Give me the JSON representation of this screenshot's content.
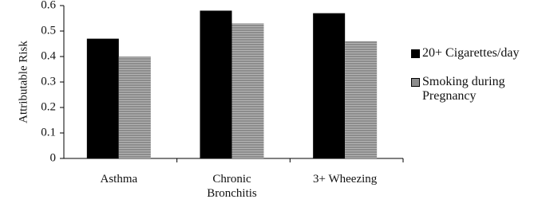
{
  "chart_data": {
    "type": "bar",
    "y_label": "Attributable Risk",
    "categories": [
      "Asthma",
      "Chronic Bronchitis",
      "3+ Wheezing"
    ],
    "series": [
      {
        "name": "20+ Cigarettes/day",
        "color": "#000000",
        "values": [
          0.47,
          0.58,
          0.57
        ]
      },
      {
        "name": "Smoking during Pregnancy",
        "color": "#8c8c8c",
        "values": [
          0.4,
          0.53,
          0.46
        ]
      }
    ],
    "ylim": [
      0,
      0.6
    ],
    "yticks": [
      0,
      0.1,
      0.2,
      0.3,
      0.4,
      0.5,
      0.6
    ],
    "legend": "right"
  }
}
